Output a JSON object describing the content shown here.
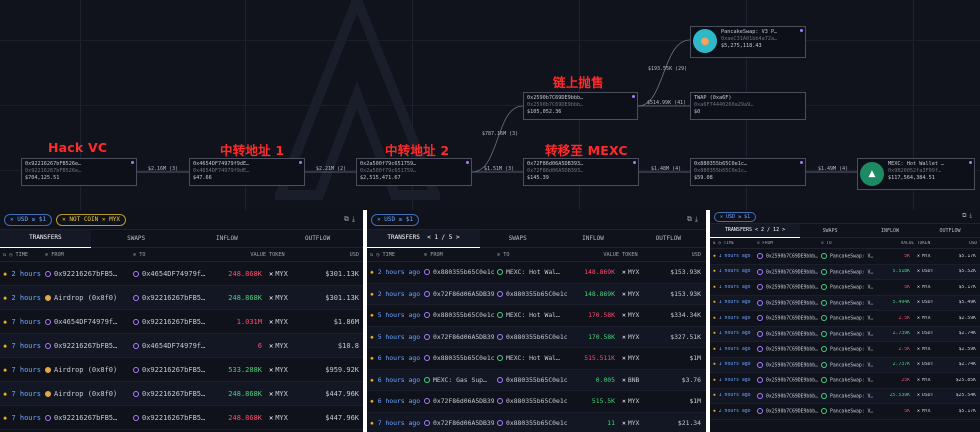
{
  "graph": {
    "labels": {
      "hack": "Hack VC",
      "relay1": "中转地址 1",
      "relay2": "中转地址 2",
      "transfer_mexc": "转移至 MEXC",
      "onchain_sell": "链上抛售"
    },
    "nodes": [
      {
        "id": "hack",
        "addr": "0x92216267bFB526e…",
        "sub": "0x92216267bFB526e…",
        "value": "$704,125.51"
      },
      {
        "id": "relay1",
        "addr": "0x4654DF74979f9dE…",
        "sub": "0x4654DF74979f9dE…",
        "value": "$47.66"
      },
      {
        "id": "relay2",
        "addr": "0x2a500f79c651759…",
        "sub": "0x2a500f79c651759…",
        "value": "$2,515,471.67"
      },
      {
        "id": "seller",
        "addr": "0x2590b7C69DE9bbb…",
        "sub": "0x2590b7C69DE9bbb…",
        "value": "$105,052.36"
      },
      {
        "id": "mid",
        "addr": "0x72F86d06A5DB393…",
        "sub": "0x72F86d06A5DB393…",
        "value": "$145.39"
      },
      {
        "id": "pre",
        "addr": "0x880355b65C0e1c…",
        "sub": "0x880355b65C0e1c…",
        "value": "$59.08"
      },
      {
        "id": "mexc",
        "addr": "MEXC: Hot Wallet …",
        "sub": "0x9B20052fa3F09f…",
        "value": "$117,564,384.51"
      },
      {
        "id": "pancake",
        "addr": "PancakeSwap: V3 P…",
        "sub": "0xaeC31A01bb4a72a…",
        "value": "$5,275,118.43"
      },
      {
        "id": "twap",
        "addr": "TWAP (0xa6F)",
        "sub": "0xa6F74440260a29a9…",
        "value": "$0"
      }
    ],
    "edges": [
      "$2.16M (3)",
      "$2.21M (2)",
      "$787.16M (3)",
      "$1.51M (3)",
      "$1.48M (4)",
      "$1.49M (4)",
      "$193.55K (29)",
      "$514.99K (41)"
    ]
  },
  "panel1": {
    "filters": [
      "USD ≥ $1",
      "NOT COIN ✕ MYX"
    ],
    "tabs": [
      "TRANSFERS",
      "SWAPS",
      "INFLOW",
      "OUTFLOW"
    ],
    "headers": [
      "TIME",
      "FROM",
      "TO",
      "VALUE",
      "TOKEN",
      "USD"
    ],
    "rows": [
      {
        "time": "2 hours ago",
        "from": "0x92216267bFB5…",
        "to": "0x4654DF74979f…",
        "value": "248.868K",
        "token": "MYX",
        "usd": "$301.13K"
      },
      {
        "time": "2 hours ago",
        "from": "Airdrop (0x8f0)",
        "to": "0x92216267bFB5…",
        "value": "248.868K",
        "token": "MYX",
        "usd": "$301.13K"
      },
      {
        "time": "7 hours ago",
        "from": "0x4654DF74979f…",
        "to": "0x92216267bFB5…",
        "value": "1.031M",
        "token": "MYX",
        "usd": "$1.86M"
      },
      {
        "time": "7 hours ago",
        "from": "0x92216267bFB5…",
        "to": "0x4654DF74979f…",
        "value": "6",
        "token": "MYX",
        "usd": "$10.8"
      },
      {
        "time": "7 hours ago",
        "from": "Airdrop (0x8f0)",
        "to": "0x92216267bFB5…",
        "value": "533.288K",
        "token": "MYX",
        "usd": "$959.92K"
      },
      {
        "time": "7 hours ago",
        "from": "Airdrop (0x8f0)",
        "to": "0x92216267bFB5…",
        "value": "248.868K",
        "token": "MYX",
        "usd": "$447.96K"
      },
      {
        "time": "7 hours ago",
        "from": "0x92216267bFB5…",
        "to": "0x92216267bFB5…",
        "value": "248.868K",
        "token": "MYX",
        "usd": "$447.96K"
      }
    ]
  },
  "panel2": {
    "filter": "USD ≥ $1",
    "tabs": [
      "TRANSFERS",
      "SWAPS",
      "INFLOW",
      "OUTFLOW"
    ],
    "pager": "1 / 5",
    "headers": [
      "TIME",
      "FROM",
      "TO",
      "VALUE",
      "TOKEN",
      "USD"
    ],
    "rows": [
      {
        "time": "2 hours ago",
        "from": "0x880355b65C0e1c…",
        "to": "MEXC: Hot Wal…",
        "value": "148.869K",
        "vc": "r",
        "token": "MYX",
        "usd": "$153.93K"
      },
      {
        "time": "2 hours ago",
        "from": "0x72F86d06A5DB39…",
        "to": "0x880355b65C0e1c…",
        "value": "148.869K",
        "vc": "g",
        "token": "MYX",
        "usd": "$153.93K"
      },
      {
        "time": "5 hours ago",
        "from": "0x880355b65C0e1c…",
        "to": "MEXC: Hot Wal…",
        "value": "170.58K",
        "vc": "r",
        "token": "MYX",
        "usd": "$334.34K"
      },
      {
        "time": "5 hours ago",
        "from": "0x72F86d06A5DB39…",
        "to": "0x880355b65C0e1c…",
        "value": "170.58K",
        "vc": "g",
        "token": "MYX",
        "usd": "$327.51K"
      },
      {
        "time": "6 hours ago",
        "from": "0x880355b65C0e1c…",
        "to": "MEXC: Hot Wal…",
        "value": "515.511K",
        "vc": "r",
        "token": "MYX",
        "usd": "$1M"
      },
      {
        "time": "6 hours ago",
        "from": "MEXC: Gas Sup…",
        "to": "0x880355b65C0e1c…",
        "value": "0.005",
        "vc": "g",
        "token": "BNB",
        "usd": "$3.76"
      },
      {
        "time": "6 hours ago",
        "from": "0x72F86d06A5DB39…",
        "to": "0x880355b65C0e1c…",
        "value": "515.5K",
        "vc": "g",
        "token": "MYX",
        "usd": "$1M"
      },
      {
        "time": "7 hours ago",
        "from": "0x72F86d06A5DB39…",
        "to": "0x880355b65C0e1c…",
        "value": "11",
        "vc": "g",
        "token": "MYX",
        "usd": "$21.34"
      }
    ]
  },
  "panel3": {
    "filter": "USD ≥ $1",
    "tabs": [
      "TRANSFERS",
      "SWAPS",
      "INFLOW",
      "OUTFLOW"
    ],
    "pager": "2 / 12",
    "headers": [
      "TIME",
      "FROM",
      "TO",
      "VALUE",
      "TOKEN",
      "USD"
    ],
    "rows": [
      {
        "time": "1 hours ago",
        "from": "0x2590b7C69DE9bbb…",
        "to": "PancakeSwap: V…",
        "value": "5K",
        "vc": "r",
        "token": "MYX",
        "usd": "$5.17K"
      },
      {
        "time": "1 hours ago",
        "from": "0x2590b7C69DE9bbb…",
        "to": "PancakeSwap: V…",
        "value": "5.518K",
        "vc": "g",
        "token": "USDT",
        "usd": "$5.52K"
      },
      {
        "time": "1 hours ago",
        "from": "0x2590b7C69DE9bbb…",
        "to": "PancakeSwap: V…",
        "value": "5K",
        "vc": "r",
        "token": "MYX",
        "usd": "$5.17K"
      },
      {
        "time": "1 hours ago",
        "from": "0x2590b7C69DE9bbb…",
        "to": "PancakeSwap: V…",
        "value": "5.494K",
        "vc": "g",
        "token": "USDT",
        "usd": "$5.49K"
      },
      {
        "time": "1 hours ago",
        "from": "0x2590b7C69DE9bbb…",
        "to": "PancakeSwap: V…",
        "value": "2.5K",
        "vc": "r",
        "token": "MYX",
        "usd": "$2.59K"
      },
      {
        "time": "1 hours ago",
        "from": "0x2590b7C69DE9bbb…",
        "to": "PancakeSwap: V…",
        "value": "2.739K",
        "vc": "g",
        "token": "USDT",
        "usd": "$2.74K"
      },
      {
        "time": "1 hours ago",
        "from": "0x2590b7C69DE9bbb…",
        "to": "PancakeSwap: V…",
        "value": "2.5K",
        "vc": "r",
        "token": "MYX",
        "usd": "$2.59K"
      },
      {
        "time": "1 hours ago",
        "from": "0x2590b7C69DE9bbb…",
        "to": "PancakeSwap: V…",
        "value": "2.737K",
        "vc": "g",
        "token": "USDT",
        "usd": "$2.74K"
      },
      {
        "time": "1 hours ago",
        "from": "0x2590b7C69DE9bbb…",
        "to": "PancakeSwap: V…",
        "value": "25K",
        "vc": "r",
        "token": "MYX",
        "usd": "$25.85K"
      },
      {
        "time": "1 hours ago",
        "from": "0x2590b7C69DE9bbb…",
        "to": "PancakeSwap: V…",
        "value": "25.539K",
        "vc": "g",
        "token": "USDT",
        "usd": "$25.54K"
      },
      {
        "time": "2 hours ago",
        "from": "0x2590b7C69DE9bbb…",
        "to": "PancakeSwap: V…",
        "value": "5K",
        "vc": "r",
        "token": "MYX",
        "usd": "$5.17K"
      }
    ]
  }
}
